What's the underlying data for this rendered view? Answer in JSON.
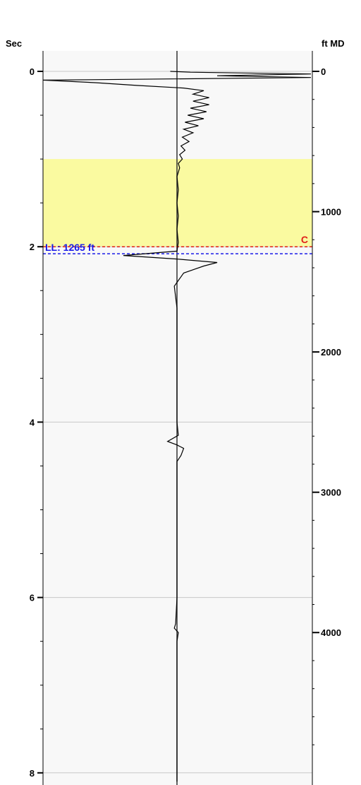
{
  "chart_data": {
    "type": "line",
    "left_axis": {
      "label": "Sec",
      "range": [
        0,
        8
      ],
      "major_ticks": [
        0,
        2,
        4,
        6,
        8
      ],
      "minor_step": 0.5
    },
    "right_axis": {
      "label": "ft MD",
      "range": [
        0,
        4000
      ],
      "labeled_ticks": [
        0,
        1000,
        2000,
        3000,
        4000
      ]
    },
    "grid": true,
    "zone": {
      "from_sec": 1.0,
      "to_sec": 2.0,
      "color": "#fafaa0"
    },
    "markers": [
      {
        "name": "red-dashed-line",
        "label": "C",
        "sec": 2.0,
        "color": "#e0201a"
      },
      {
        "name": "blue-dashed-line",
        "label": "LL: 1265 ft",
        "sec": 2.08,
        "color": "#1a1ae8"
      }
    ],
    "series": [
      {
        "color": "#000000",
        "points": [
          [
            -0.05,
            0.0
          ],
          [
            0.1,
            0.01
          ],
          [
            1.0,
            0.03
          ],
          [
            0.3,
            0.05
          ],
          [
            1.0,
            0.07
          ],
          [
            -0.3,
            0.09
          ],
          [
            -1.0,
            0.1
          ],
          [
            -0.6,
            0.13
          ],
          [
            -0.3,
            0.16
          ],
          [
            0.05,
            0.19
          ],
          [
            0.2,
            0.22
          ],
          [
            0.12,
            0.26
          ],
          [
            0.24,
            0.3
          ],
          [
            0.12,
            0.34
          ],
          [
            0.24,
            0.38
          ],
          [
            0.1,
            0.42
          ],
          [
            0.22,
            0.46
          ],
          [
            0.08,
            0.5
          ],
          [
            0.2,
            0.54
          ],
          [
            0.06,
            0.58
          ],
          [
            0.16,
            0.62
          ],
          [
            0.05,
            0.66
          ],
          [
            0.12,
            0.7
          ],
          [
            0.04,
            0.75
          ],
          [
            0.09,
            0.8
          ],
          [
            0.03,
            0.85
          ],
          [
            0.06,
            0.9
          ],
          [
            0.02,
            0.95
          ],
          [
            0.04,
            1.0
          ],
          [
            0.01,
            1.05
          ],
          [
            0.02,
            1.1
          ],
          [
            0.0,
            1.2
          ],
          [
            0.01,
            1.35
          ],
          [
            0.0,
            1.5
          ],
          [
            0.01,
            1.65
          ],
          [
            0.0,
            1.8
          ],
          [
            0.01,
            1.95
          ],
          [
            0.0,
            2.05
          ],
          [
            -0.4,
            2.1
          ],
          [
            -0.2,
            2.12
          ],
          [
            0.0,
            2.14
          ],
          [
            0.3,
            2.18
          ],
          [
            0.2,
            2.22
          ],
          [
            0.05,
            2.3
          ],
          [
            -0.02,
            2.45
          ],
          [
            0.0,
            2.7
          ],
          [
            0.0,
            3.0
          ],
          [
            0.0,
            3.5
          ],
          [
            0.0,
            4.0
          ],
          [
            0.01,
            4.15
          ],
          [
            -0.07,
            4.22
          ],
          [
            0.0,
            4.26
          ],
          [
            0.05,
            4.3
          ],
          [
            0.03,
            4.38
          ],
          [
            0.0,
            4.45
          ],
          [
            0.0,
            5.0
          ],
          [
            0.0,
            5.5
          ],
          [
            0.0,
            6.0
          ],
          [
            -0.01,
            6.3
          ],
          [
            -0.02,
            6.35
          ],
          [
            0.01,
            6.4
          ],
          [
            0.0,
            6.5
          ],
          [
            0.0,
            7.0
          ],
          [
            0.0,
            7.5
          ],
          [
            0.0,
            8.1
          ]
        ]
      }
    ]
  }
}
